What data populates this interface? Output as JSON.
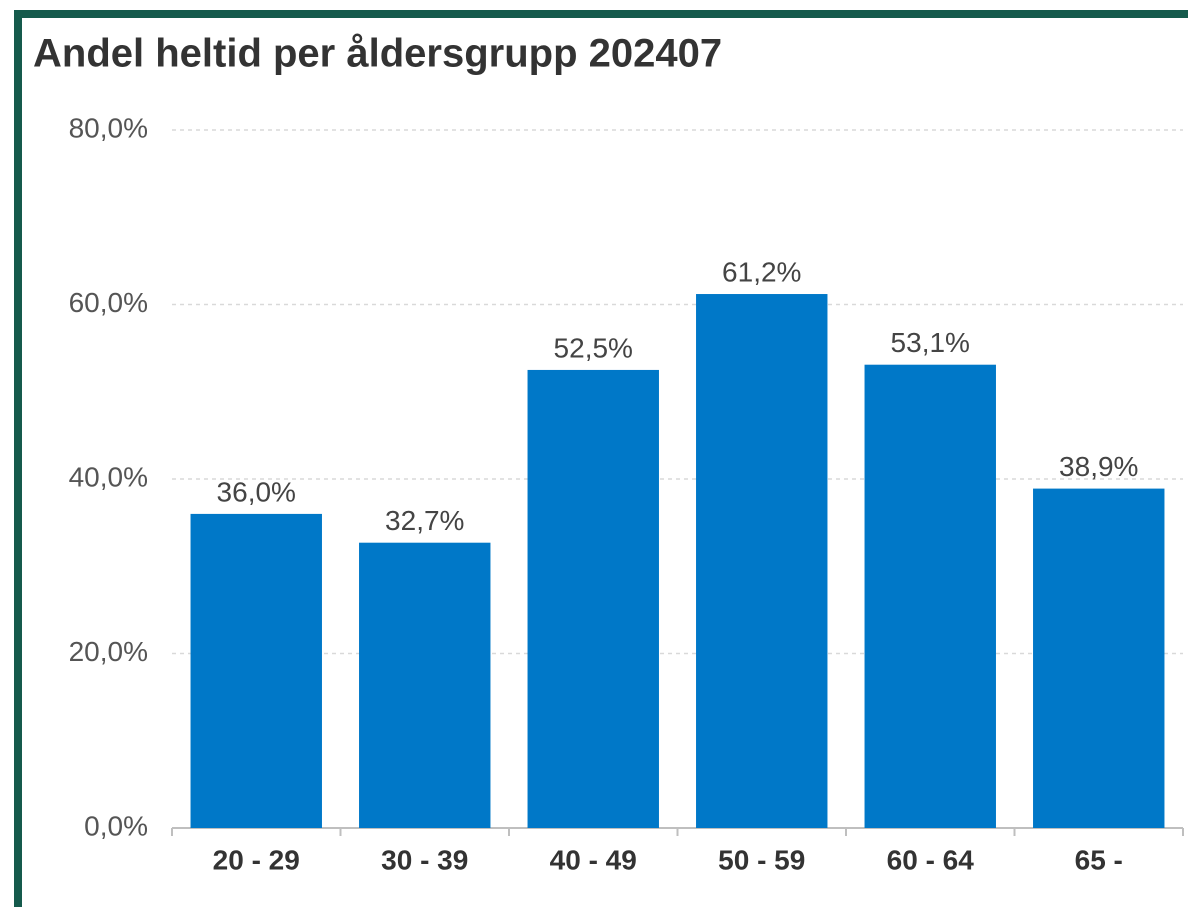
{
  "chart_data": {
    "type": "bar",
    "title": "Andel heltid per åldersgrupp 202407",
    "categories": [
      "20 - 29",
      "30 - 39",
      "40 - 49",
      "50 - 59",
      "60 - 64",
      "65 -"
    ],
    "values": [
      36.0,
      32.7,
      52.5,
      61.2,
      53.1,
      38.9
    ],
    "value_labels": [
      "36,0%",
      "32,7%",
      "52,5%",
      "61,2%",
      "53,1%",
      "38,9%"
    ],
    "color": "#0078c8",
    "ylim": [
      0,
      80
    ],
    "yticks": [
      {
        "value": 0,
        "label": "0,0%"
      },
      {
        "value": 20,
        "label": "20,0%"
      },
      {
        "value": 40,
        "label": "40,0%"
      },
      {
        "value": 60,
        "label": "60,0%"
      },
      {
        "value": 80,
        "label": "80,0%"
      }
    ],
    "grid": true
  }
}
